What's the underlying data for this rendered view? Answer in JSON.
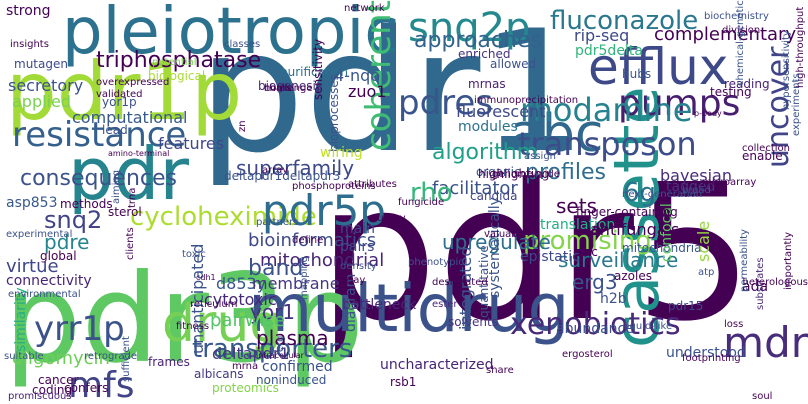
{
  "words": [
    {
      "text": "pdr5",
      "color": "#440154"
    },
    {
      "text": "pdr1",
      "color": "#30688e"
    },
    {
      "text": "pdr3p",
      "color": "#5ec962"
    },
    {
      "text": "multidrug",
      "color": "#3b528b"
    },
    {
      "text": "pleiotropic",
      "color": "#2c728e"
    },
    {
      "text": "cassette",
      "color": "#21918c"
    },
    {
      "text": "abc",
      "color": "#31688e"
    },
    {
      "text": "pdr1p",
      "color": "#a2da37"
    },
    {
      "text": "pdr",
      "color": "#25848e"
    },
    {
      "text": "efflux",
      "color": "#3e4989"
    },
    {
      "text": "pumps",
      "color": "#481f70"
    },
    {
      "text": "drug",
      "color": "#75d054"
    },
    {
      "text": "resistance",
      "color": "#355f8d"
    },
    {
      "text": "transposon",
      "color": "#3d4d8a"
    },
    {
      "text": "rhodamine",
      "color": "#26828e"
    },
    {
      "text": "pdres",
      "color": "#3a548c"
    },
    {
      "text": "coherent",
      "color": "#3fbc73"
    },
    {
      "text": "snq2p",
      "color": "#23898e"
    },
    {
      "text": "fluconazole",
      "color": "#2a788e"
    },
    {
      "text": "cycloheximide",
      "color": "#addc30"
    },
    {
      "text": "pdr5p",
      "color": "#2e6d8e"
    },
    {
      "text": "xenobiotics",
      "color": "#482878"
    },
    {
      "text": "mdr",
      "color": "#472d7b"
    },
    {
      "text": "yrr1p",
      "color": "#3b528b"
    },
    {
      "text": "mfs",
      "color": "#414487"
    },
    {
      "text": "uncover",
      "color": "#414487"
    },
    {
      "text": "transporters",
      "color": "#38598c"
    },
    {
      "text": "triphosphatase",
      "color": "#440154"
    },
    {
      "text": "approaches",
      "color": "#33638d"
    },
    {
      "text": "consequences",
      "color": "#3b528b"
    },
    {
      "text": "superfamily",
      "color": "#3e4989"
    },
    {
      "text": "profiles",
      "color": "#2f6c8e"
    },
    {
      "text": "promising",
      "color": "#84d44b"
    },
    {
      "text": "algorithm",
      "color": "#1fa088"
    },
    {
      "text": "bioinformatics",
      "color": "#3e4a89"
    },
    {
      "text": "mitochondrial",
      "color": "#482576"
    },
    {
      "text": "facilitator",
      "color": "#3b528b"
    },
    {
      "text": "rho",
      "color": "#35b779"
    },
    {
      "text": "6g",
      "color": "#2d708e"
    },
    {
      "text": "snq2",
      "color": "#414487"
    },
    {
      "text": "pdre",
      "color": "#25848e"
    },
    {
      "text": "virtue",
      "color": "#3f4788"
    },
    {
      "text": "connectivity",
      "color": "#482475"
    },
    {
      "text": "band",
      "color": "#3b528b"
    },
    {
      "text": "upregulate",
      "color": "#2d708e"
    },
    {
      "text": "sets",
      "color": "#440154"
    },
    {
      "text": "surveillance",
      "color": "#2a788e"
    },
    {
      "text": "erg3",
      "color": "#3b528b"
    },
    {
      "text": "plasma",
      "color": "#440154"
    },
    {
      "text": "yor1",
      "color": "#46337e"
    },
    {
      "text": "oligomycin",
      "color": "#6ece58"
    },
    {
      "text": "d853y",
      "color": "#39568c"
    },
    {
      "text": "pairwise",
      "color": "#52c569"
    },
    {
      "text": "deltapdr1",
      "color": "#453781"
    },
    {
      "text": "membrane",
      "color": "#453781"
    },
    {
      "text": "cytotoxic",
      "color": "#482878"
    },
    {
      "text": "secretory",
      "color": "#3b528b"
    },
    {
      "text": "mutagen",
      "color": "#3e4989"
    },
    {
      "text": "insights",
      "color": "#440154"
    },
    {
      "text": "strong",
      "color": "#440154"
    },
    {
      "text": "applied",
      "color": "#7ad151"
    },
    {
      "text": "computational",
      "color": "#38598c"
    },
    {
      "text": "features",
      "color": "#3f4788"
    },
    {
      "text": "fluorescent",
      "color": "#3e4989"
    },
    {
      "text": "modules",
      "color": "#2c728e"
    },
    {
      "text": "zuo1",
      "color": "#440154"
    },
    {
      "text": "4-nqo",
      "color": "#39568c"
    },
    {
      "text": "mrnas",
      "color": "#481f70"
    },
    {
      "text": "complementary",
      "color": "#440154"
    },
    {
      "text": "rip-seq",
      "color": "#3e4989"
    },
    {
      "text": "pdr5delta",
      "color": "#2fb47c"
    },
    {
      "text": "hubs",
      "color": "#39568c"
    },
    {
      "text": "enriched",
      "color": "#46327e"
    },
    {
      "text": "purification",
      "color": "#2d708e"
    },
    {
      "text": "bayesian",
      "color": "#472c7a"
    },
    {
      "text": "sterol",
      "color": "#440154"
    },
    {
      "text": "methods",
      "color": "#440154"
    },
    {
      "text": "asp853",
      "color": "#38598c"
    },
    {
      "text": "global",
      "color": "#440154"
    },
    {
      "text": "similarity",
      "color": "#27ad81"
    },
    {
      "text": "division",
      "color": "#440154"
    },
    {
      "text": "testing",
      "color": "#440154"
    },
    {
      "text": "reading",
      "color": "#482173"
    },
    {
      "text": "tagged",
      "color": "#46337e"
    },
    {
      "text": "candida",
      "color": "#414487"
    },
    {
      "text": "translation",
      "color": "#25ac82"
    },
    {
      "text": "zinc",
      "color": "#440154"
    },
    {
      "text": "antifungals",
      "color": "#440154"
    },
    {
      "text": "mitochondria",
      "color": "#39568c"
    },
    {
      "text": "epistatic",
      "color": "#3e4989"
    },
    {
      "text": "azoles",
      "color": "#440154"
    },
    {
      "text": "confocal",
      "color": "#5ec962"
    },
    {
      "text": "scale",
      "color": "#95d840"
    },
    {
      "text": "ada",
      "color": "#440154"
    },
    {
      "text": "main",
      "color": "#404588"
    },
    {
      "text": "pairs",
      "color": "#3e4989"
    },
    {
      "text": "h2b",
      "color": "#3b528b"
    },
    {
      "text": "frames",
      "color": "#482475"
    },
    {
      "text": "cancer",
      "color": "#440154"
    },
    {
      "text": "coding",
      "color": "#440154"
    },
    {
      "text": "bottleneck",
      "color": "#482878"
    },
    {
      "text": "abundance",
      "color": "#3b528b"
    },
    {
      "text": "pdr15",
      "color": "#414487"
    },
    {
      "text": "understood",
      "color": "#3b528b"
    },
    {
      "text": "uncharacterized",
      "color": "#482475"
    },
    {
      "text": "confirmed",
      "color": "#3b528b"
    },
    {
      "text": "rsb1",
      "color": "#440154"
    },
    {
      "text": "proteomics",
      "color": "#84d44b"
    },
    {
      "text": "albicans",
      "color": "#453882"
    },
    {
      "text": "confers",
      "color": "#440154"
    },
    {
      "text": "promiscuous",
      "color": "#482173"
    },
    {
      "text": "noninduced",
      "color": "#3b528b"
    },
    {
      "text": "solvents",
      "color": "#46337e"
    },
    {
      "text": "ester",
      "color": "#482878"
    },
    {
      "text": "sensitivity",
      "color": "#440154"
    },
    {
      "text": "bioprocesses",
      "color": "#3b528b"
    },
    {
      "text": "biogenesis",
      "color": "#482878"
    },
    {
      "text": "integrated",
      "color": "#3b528b"
    },
    {
      "text": "systematically",
      "color": "#3b528b"
    },
    {
      "text": "quantitative",
      "color": "#3b528b"
    },
    {
      "text": "unanticipated",
      "color": "#3b528b"
    },
    {
      "text": "wiring",
      "color": "#c2df23"
    },
    {
      "text": "diagram",
      "color": "#3b528b"
    },
    {
      "text": "organic",
      "color": "#3b528b"
    },
    {
      "text": "highlighting",
      "color": "#440154"
    },
    {
      "text": "phosphoproteins",
      "color": "#440154"
    },
    {
      "text": "environmental",
      "color": "#3b528b"
    },
    {
      "text": "experimental",
      "color": "#3b528b"
    },
    {
      "text": "biological",
      "color": "#a8db34"
    },
    {
      "text": "potential",
      "color": "#7ad151"
    },
    {
      "text": "yor1p",
      "color": "#3b528b"
    },
    {
      "text": "lead",
      "color": "#3b528b"
    },
    {
      "text": "assign",
      "color": "#3b528b"
    },
    {
      "text": "enable",
      "color": "#440154"
    },
    {
      "text": "broad",
      "color": "#3b528b"
    },
    {
      "text": "microarray",
      "color": "#440154"
    },
    {
      "text": "hypersensitivity",
      "color": "#3b528b"
    },
    {
      "text": "high-throughput",
      "color": "#440154"
    },
    {
      "text": "experiments",
      "color": "#3b528b"
    },
    {
      "text": "substrates",
      "color": "#482878"
    },
    {
      "text": "importantly",
      "color": "#440154"
    },
    {
      "text": "permeability",
      "color": "#3b528b"
    },
    {
      "text": "network",
      "color": "#440154"
    },
    {
      "text": "allowed",
      "color": "#3b528b"
    },
    {
      "text": "challenge",
      "color": "#440154"
    },
    {
      "text": "classes",
      "color": "#3b528b"
    },
    {
      "text": "finger-containing",
      "color": "#440154"
    },
    {
      "text": "next-generation",
      "color": "#3b528b"
    },
    {
      "text": "collection",
      "color": "#440154"
    },
    {
      "text": "array",
      "color": "#440154"
    },
    {
      "text": "attributes",
      "color": "#440154"
    },
    {
      "text": "genome-wide",
      "color": "#440154"
    },
    {
      "text": "amino-terminal",
      "color": "#440154"
    },
    {
      "text": "fungicide",
      "color": "#440154"
    },
    {
      "text": "deltapdr1deltapdr3",
      "color": "#3b528b"
    },
    {
      "text": "partners",
      "color": "#3b528b"
    },
    {
      "text": "cdh1",
      "color": "#440154"
    },
    {
      "text": "toxic",
      "color": "#3b528b"
    },
    {
      "text": "aiming",
      "color": "#3b528b"
    },
    {
      "text": "trna",
      "color": "#440154"
    },
    {
      "text": "phenotypic",
      "color": "#3b528b"
    },
    {
      "text": "valuable",
      "color": "#440154"
    },
    {
      "text": "designated",
      "color": "#440154"
    },
    {
      "text": "density",
      "color": "#3b528b"
    },
    {
      "text": "delay",
      "color": "#440154"
    },
    {
      "text": "mapping",
      "color": "#3b528b"
    },
    {
      "text": "reticulum",
      "color": "#440154"
    },
    {
      "text": "fitness",
      "color": "#440154"
    },
    {
      "text": "intracellular",
      "color": "#440154"
    },
    {
      "text": "erg",
      "color": "#3b528b"
    },
    {
      "text": "retrograde",
      "color": "#3b528b"
    },
    {
      "text": "ergosterol",
      "color": "#440154"
    },
    {
      "text": "liquid-like",
      "color": "#3b528b"
    },
    {
      "text": "heterologous",
      "color": "#440154"
    },
    {
      "text": "atp",
      "color": "#3b528b"
    },
    {
      "text": "loss",
      "color": "#440154"
    },
    {
      "text": "footprinting",
      "color": "#440154"
    },
    {
      "text": "soul",
      "color": "#440154"
    },
    {
      "text": "share",
      "color": "#440154"
    },
    {
      "text": "mrna",
      "color": "#440154"
    },
    {
      "text": "suitable",
      "color": "#3b528b"
    },
    {
      "text": "sufficient",
      "color": "#3b528b"
    },
    {
      "text": "clients",
      "color": "#440154"
    },
    {
      "text": "overexpressed",
      "color": "#440154"
    },
    {
      "text": "validated",
      "color": "#440154"
    },
    {
      "text": "define",
      "color": "#440154"
    },
    {
      "text": "zn",
      "color": "#440154"
    },
    {
      "text": "homs",
      "color": "#440154"
    },
    {
      "text": "biochemistry",
      "color": "#3b528b"
    },
    {
      "text": "chemical-genetic",
      "color": "#3b528b"
    },
    {
      "text": "p-body",
      "color": "#440154"
    },
    {
      "text": "immunoprecipitation",
      "color": "#440154"
    },
    {
      "text": "survey",
      "color": "#440154"
    }
  ]
}
